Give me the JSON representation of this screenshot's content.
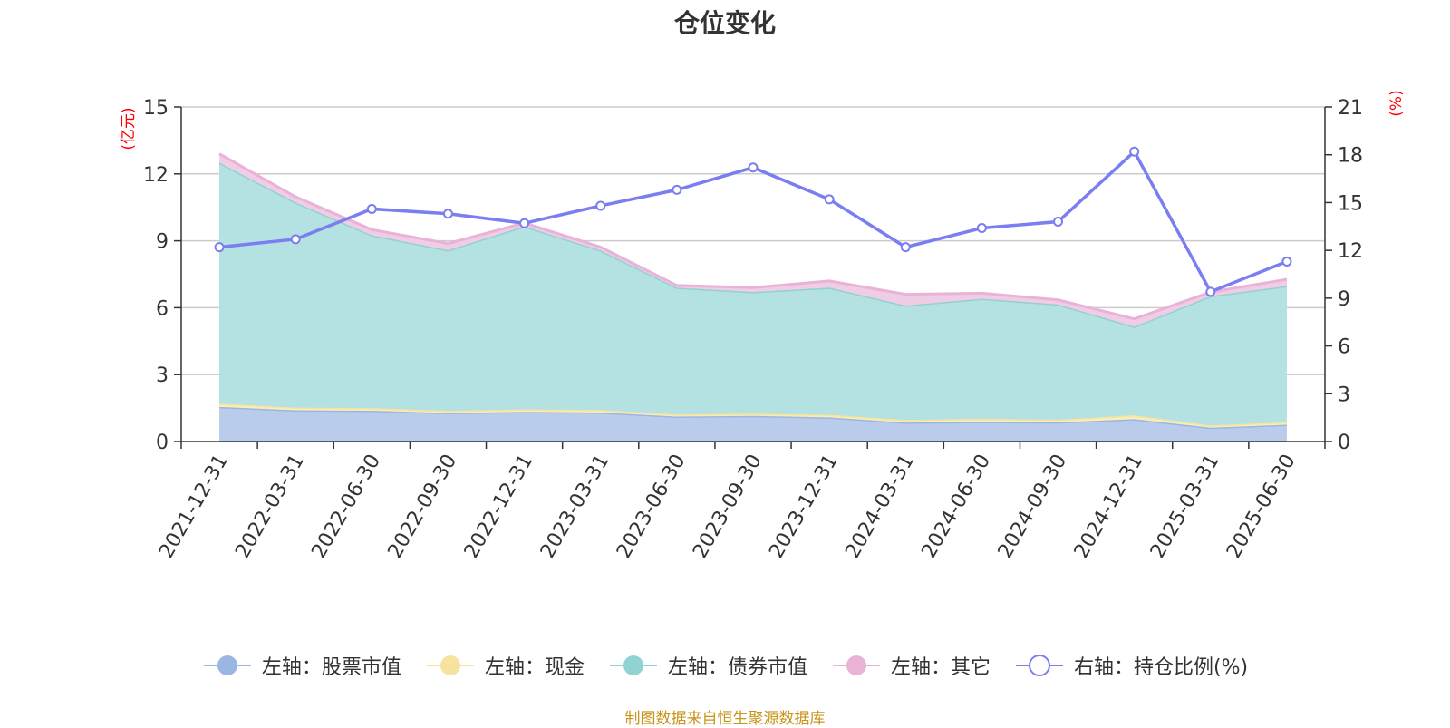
{
  "chart_data": {
    "type": "area",
    "title": "仓位变化",
    "footer": "制图数据来自恒生聚源数据库",
    "left_axis_unit": "(亿元)",
    "right_axis_unit": "(%)",
    "categories": [
      "2021-12-31",
      "2022-03-31",
      "2022-06-30",
      "2022-09-30",
      "2022-12-31",
      "2023-03-31",
      "2023-06-30",
      "2023-09-30",
      "2023-12-31",
      "2024-03-31",
      "2024-06-30",
      "2024-09-30",
      "2024-12-31",
      "2025-03-31",
      "2025-06-30"
    ],
    "left_ylim": [
      0,
      15
    ],
    "left_ticks": [
      0,
      3,
      6,
      9,
      12,
      15
    ],
    "right_ylim": [
      0,
      21
    ],
    "right_ticks": [
      0,
      3,
      6,
      9,
      12,
      15,
      18,
      21
    ],
    "grid": true,
    "legend_position": "bottom",
    "series": [
      {
        "name": "左轴：股票市值",
        "axis": "left",
        "stack": true,
        "color": "#9bb6e3",
        "fill": "#b9ccec",
        "values": [
          1.55,
          1.4,
          1.38,
          1.28,
          1.33,
          1.3,
          1.12,
          1.15,
          1.08,
          0.85,
          0.88,
          0.86,
          1.0,
          0.62,
          0.75
        ]
      },
      {
        "name": "左轴：现金",
        "axis": "left",
        "stack": true,
        "color": "#f6e3a0",
        "fill": "#f9edbb",
        "values": [
          0.15,
          0.12,
          0.12,
          0.1,
          0.12,
          0.12,
          0.1,
          0.1,
          0.12,
          0.12,
          0.14,
          0.12,
          0.18,
          0.1,
          0.12
        ]
      },
      {
        "name": "左轴：债券市值",
        "axis": "left",
        "stack": true,
        "color": "#91d2d2",
        "fill": "#b4e1e1",
        "values": [
          10.8,
          9.2,
          7.75,
          7.2,
          8.2,
          7.15,
          5.68,
          5.45,
          5.7,
          5.13,
          5.38,
          5.17,
          3.97,
          5.8,
          6.1
        ]
      },
      {
        "name": "左轴：其它",
        "axis": "left",
        "stack": true,
        "color": "#e9b3d8",
        "fill": "#f0cce5",
        "values": [
          0.4,
          0.25,
          0.25,
          0.3,
          0.15,
          0.15,
          0.1,
          0.2,
          0.3,
          0.5,
          0.25,
          0.2,
          0.35,
          0.18,
          0.3
        ]
      },
      {
        "name": "右轴：持仓比例(%)",
        "axis": "right",
        "type": "line",
        "color": "#7b7ef0",
        "values": [
          12.2,
          12.7,
          14.6,
          14.3,
          13.7,
          14.8,
          15.8,
          17.2,
          15.2,
          12.2,
          13.4,
          13.8,
          18.2,
          9.4,
          11.3
        ]
      }
    ]
  }
}
